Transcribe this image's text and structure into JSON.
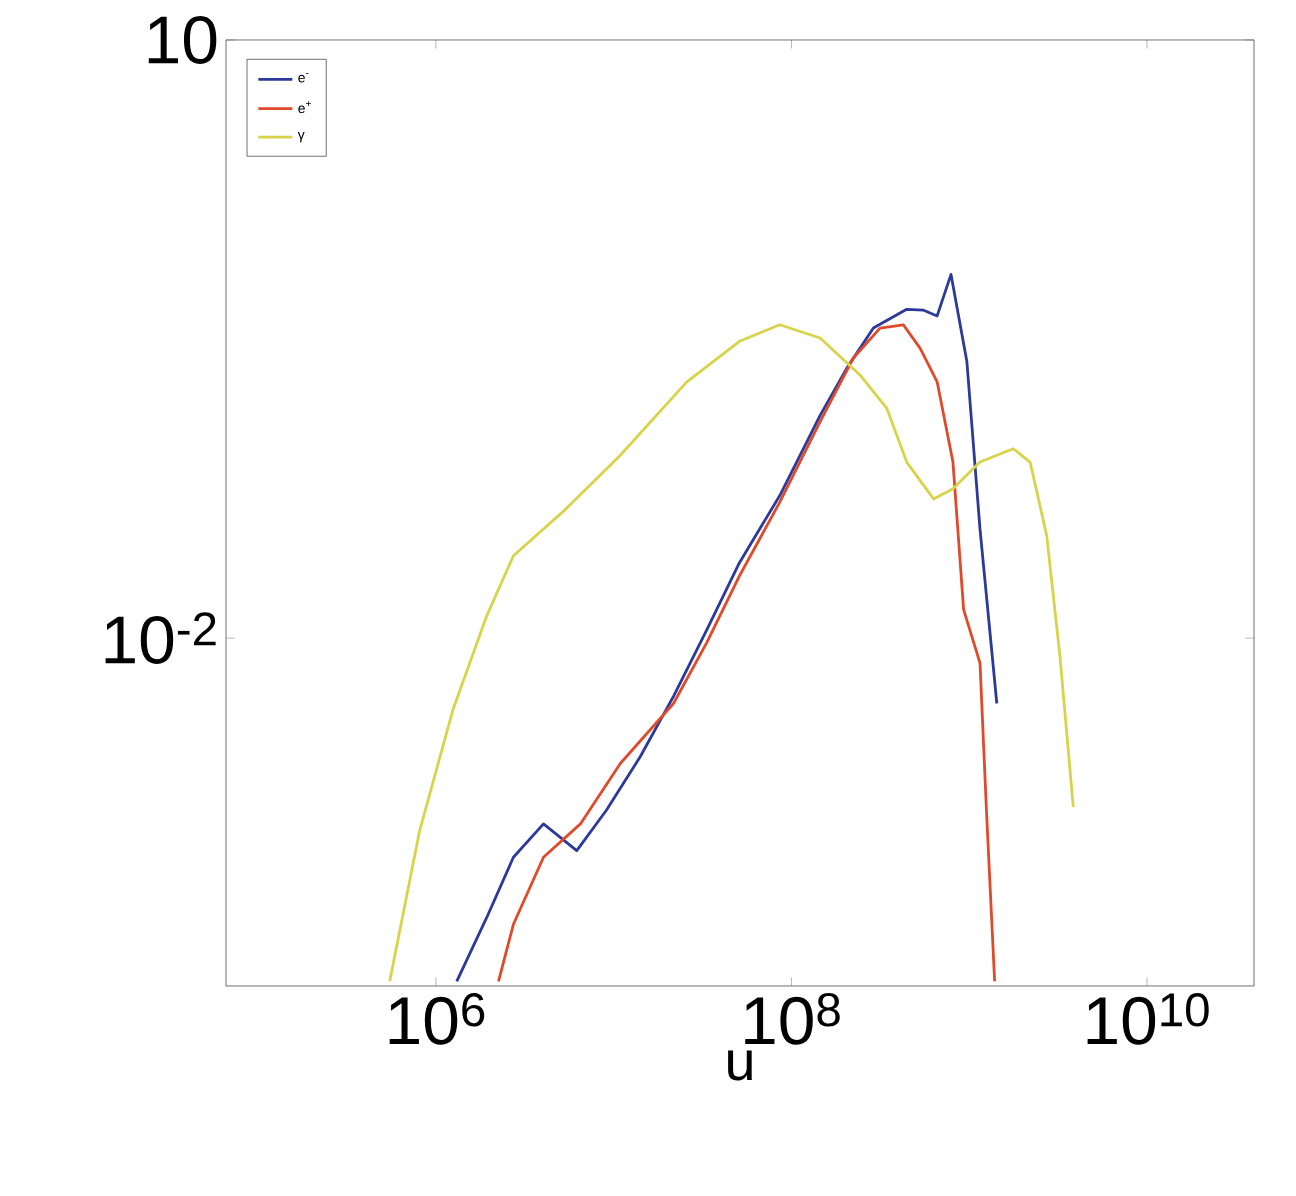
{
  "chart_data": {
    "type": "line",
    "xlabel": "u",
    "log": "xy",
    "legend": "top left",
    "xlim": [
      66000,
      40000000000
    ],
    "ylim": [
      0.00018,
      10
    ],
    "xticks": [
      {
        "value": 1000000,
        "label": "10$^{6}$"
      },
      {
        "value": 100000000,
        "label": "10$^{8}$"
      },
      {
        "value": 10000000000,
        "label": "10$^{10}$"
      }
    ],
    "yticks": [
      {
        "value": 0.01,
        "label": "10$^{-2}$"
      },
      10
    ],
    "series": [
      {
        "name": "e$^{-}$",
        "color": "#2b3a9a",
        "x": [
          1310000,
          1930000,
          2730000,
          4030000,
          6200000,
          9100000,
          14100000,
          21700000,
          33400000,
          51000000,
          86000000,
          145000000,
          205000000,
          289000000,
          445000000,
          550000000,
          660000000,
          790000000,
          970000000,
          1150000000,
          1430000000
        ],
        "values": [
          0.00019,
          0.000396,
          0.000796,
          0.00117,
          0.00086,
          0.00137,
          0.00254,
          0.0051,
          0.011,
          0.0239,
          0.0519,
          0.131,
          0.226,
          0.359,
          0.446,
          0.442,
          0.413,
          0.667,
          0.244,
          0.0352,
          0.0047
        ]
      },
      {
        "name": "e$^{+}$",
        "color": "#e04a2a",
        "x": [
          2250000,
          2730000,
          4030000,
          6500000,
          10900000,
          21700000,
          33400000,
          51000000,
          86000000,
          145000000,
          223000000,
          315000000,
          426000000,
          530000000,
          660000000,
          810000000,
          930000000,
          1150000000,
          1250000000,
          1390000000
        ],
        "values": [
          0.00019,
          0.000367,
          0.000796,
          0.00117,
          0.00235,
          0.0047,
          0.0095,
          0.0205,
          0.0481,
          0.122,
          0.254,
          0.359,
          0.373,
          0.284,
          0.193,
          0.0764,
          0.0139,
          0.0075,
          0.00137,
          0.00019
        ]
      },
      {
        "name": "γ",
        "color": "#d8d44a",
        "x": [
          550000,
          810000,
          1250000,
          1930000,
          2730000,
          5400000,
          10900000,
          25800000,
          51000000,
          86000000,
          145000000,
          243000000,
          344000000,
          445000000,
          630000000,
          810000000,
          1150000000,
          1770000000,
          2200000000,
          2730000000,
          3240000000,
          3850000000
        ],
        "values": [
          0.00019,
          0.00108,
          0.0044,
          0.0129,
          0.0259,
          0.0445,
          0.0826,
          0.193,
          0.308,
          0.373,
          0.32,
          0.209,
          0.142,
          0.0764,
          0.0499,
          0.0561,
          0.0764,
          0.0891,
          0.0764,
          0.0326,
          0.0081,
          0.00142
        ]
      }
    ]
  }
}
